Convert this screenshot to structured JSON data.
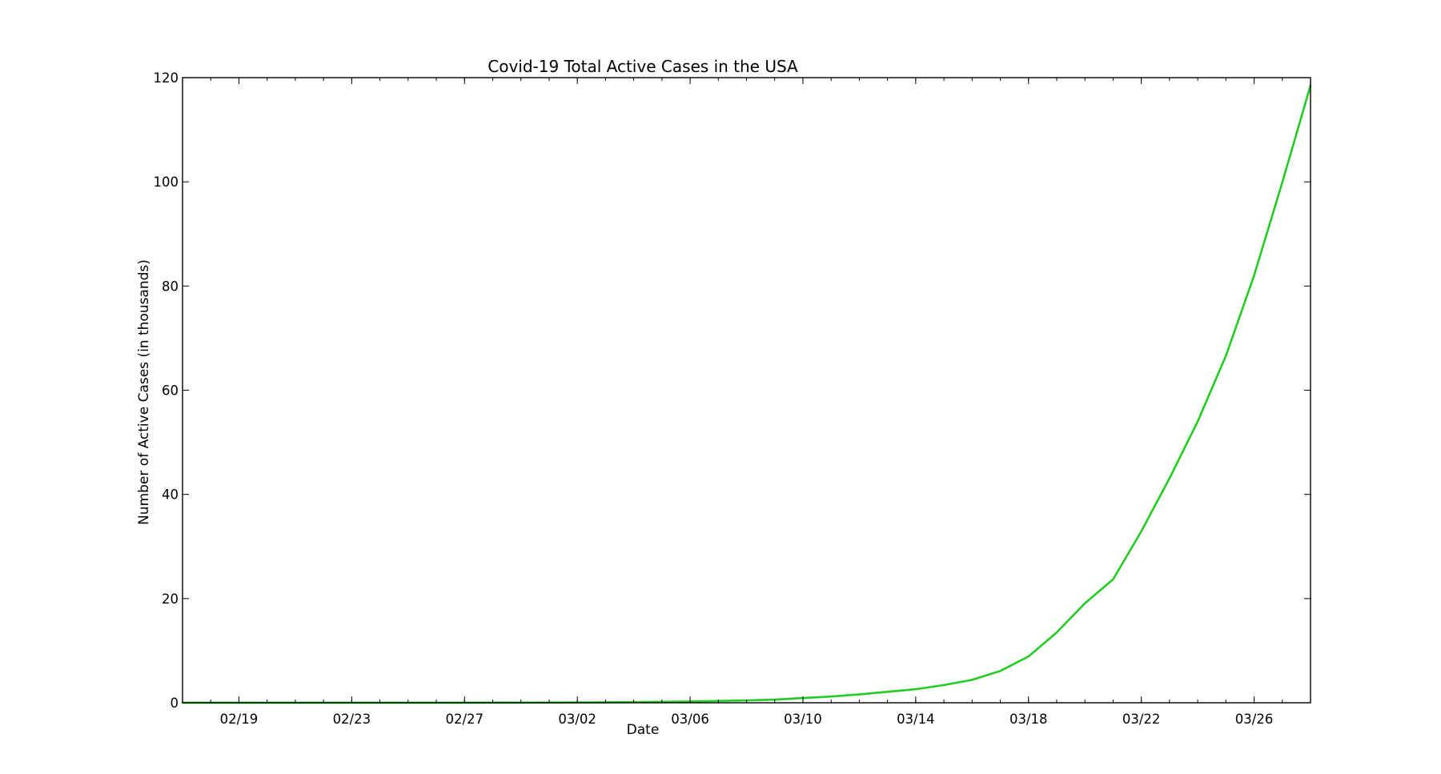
{
  "chart_data": {
    "type": "line",
    "title": "Covid-19 Total Active Cases in the USA",
    "xlabel": "Date",
    "ylabel": "Number of Active Cases (in thousands)",
    "grid": false,
    "legend": "none",
    "x_range": [
      "02/17",
      "03/28"
    ],
    "ylim": [
      0,
      120
    ],
    "x_ticks": [
      "02/19",
      "02/23",
      "02/27",
      "03/02",
      "03/06",
      "03/10",
      "03/14",
      "03/18",
      "03/22",
      "03/26"
    ],
    "y_ticks": [
      0,
      20,
      40,
      60,
      80,
      100,
      120
    ],
    "series": [
      {
        "color": "#22cc22",
        "x": [
          "02/17",
          "02/18",
          "02/19",
          "02/20",
          "02/21",
          "02/22",
          "02/23",
          "02/24",
          "02/25",
          "02/26",
          "02/27",
          "02/28",
          "02/29",
          "03/01",
          "03/02",
          "03/03",
          "03/04",
          "03/05",
          "03/06",
          "03/07",
          "03/08",
          "03/09",
          "03/10",
          "03/11",
          "03/12",
          "03/13",
          "03/14",
          "03/15",
          "03/16",
          "03/17",
          "03/18",
          "03/19",
          "03/20",
          "03/21",
          "03/22",
          "03/23",
          "03/24",
          "03/25",
          "03/26",
          "03/27",
          "03/28"
        ],
        "values": [
          0.01,
          0.01,
          0.01,
          0.01,
          0.01,
          0.02,
          0.02,
          0.02,
          0.02,
          0.02,
          0.02,
          0.03,
          0.03,
          0.04,
          0.06,
          0.09,
          0.12,
          0.18,
          0.25,
          0.35,
          0.45,
          0.6,
          0.9,
          1.2,
          1.6,
          2.1,
          2.6,
          3.4,
          4.4,
          6.1,
          8.9,
          13.5,
          19.1,
          23.7,
          32.9,
          43.1,
          54.0,
          66.6,
          82.0,
          99.9,
          118.5
        ]
      }
    ]
  }
}
